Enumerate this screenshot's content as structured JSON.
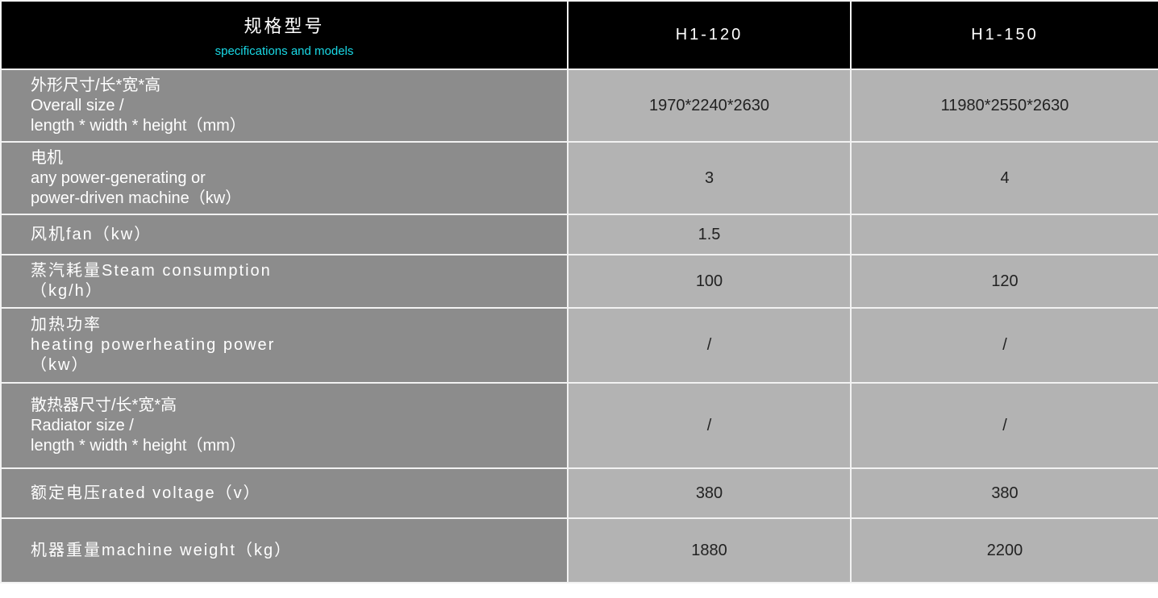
{
  "header": {
    "title_zh": "规格型号",
    "title_en": "specifications and models",
    "models": [
      "H1-120",
      "H1-150"
    ]
  },
  "rows": [
    {
      "label": [
        "外形尺寸/长*宽*高",
        "Overall size /",
        "length * width * height（mm）"
      ],
      "values": [
        "1970*2240*2630",
        "11980*2550*2630"
      ]
    },
    {
      "label": [
        "电机",
        "any power-generating or",
        "power-driven machine（kw）"
      ],
      "values": [
        "3",
        "4"
      ]
    },
    {
      "label": [
        "风机fan（kw）"
      ],
      "values": [
        "1.5",
        ""
      ]
    },
    {
      "label": [
        "蒸汽耗量Steam consumption",
        "（kg/h）"
      ],
      "values": [
        "100",
        "120"
      ]
    },
    {
      "label": [
        "加热功率",
        "heating powerheating power",
        "（kw）"
      ],
      "values": [
        "/",
        "/"
      ]
    },
    {
      "label": [
        "散热器尺寸/长*宽*高",
        "Radiator size /",
        "length * width * height（mm）"
      ],
      "values": [
        "/",
        "/"
      ]
    },
    {
      "label": [
        "额定电压rated voltage（v）"
      ],
      "values": [
        "380",
        "380"
      ]
    },
    {
      "label": [
        "机器重量machine weight（kg）"
      ],
      "values": [
        "1880",
        "2200"
      ]
    }
  ],
  "colors": {
    "header_bg": "#000000",
    "subtitle": "#19d9e6",
    "label_bg": "#8c8c8c",
    "value_bg": "#b3b3b3"
  }
}
